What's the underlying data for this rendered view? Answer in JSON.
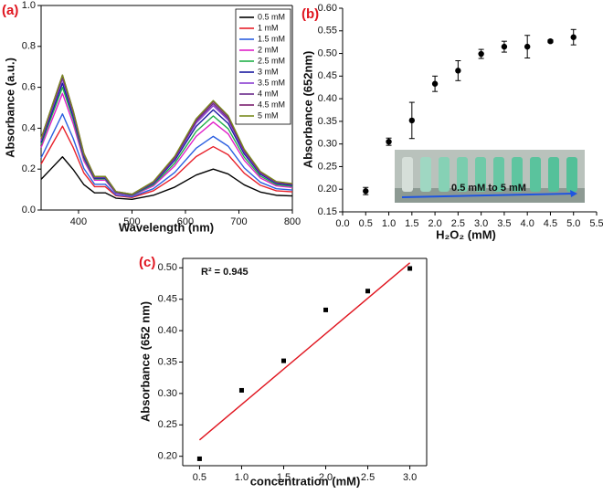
{
  "chart_data": [
    {
      "type": "line",
      "panel_label": "(a)",
      "x_label": "Wavelength (nm)",
      "y_label": "Absorbance (a.u.)",
      "x": [
        330,
        350,
        370,
        390,
        410,
        430,
        450,
        470,
        500,
        540,
        580,
        620,
        652,
        680,
        710,
        740,
        770,
        800
      ],
      "xlim": [
        330,
        800
      ],
      "xticks": [
        400,
        500,
        600,
        700,
        800
      ],
      "ylim": [
        0,
        1.0
      ],
      "yticks": [
        {
          "value": 0,
          "label": "0.0"
        },
        0.2,
        0.4,
        0.6,
        0.8,
        {
          "value": 1.0,
          "label": "1.0"
        }
      ],
      "legend": "upper right",
      "series": [
        {
          "name": "0.5 mM",
          "color": "#000000",
          "values": [
            0.15,
            0.205,
            0.26,
            0.198,
            0.124,
            0.084,
            0.084,
            0.058,
            0.052,
            0.072,
            0.112,
            0.171,
            0.2,
            0.176,
            0.123,
            0.088,
            0.072,
            0.069
          ]
        },
        {
          "name": "1 mM",
          "color": "#e8202a",
          "values": [
            0.225,
            0.318,
            0.41,
            0.306,
            0.181,
            0.114,
            0.114,
            0.07,
            0.061,
            0.094,
            0.162,
            0.261,
            0.31,
            0.27,
            0.18,
            0.121,
            0.094,
            0.089
          ]
        },
        {
          "name": "1.5 mM",
          "color": "#2b5fe0",
          "values": [
            0.255,
            0.363,
            0.47,
            0.35,
            0.203,
            0.126,
            0.126,
            0.074,
            0.065,
            0.104,
            0.184,
            0.302,
            0.36,
            0.312,
            0.206,
            0.136,
            0.104,
            0.098
          ]
        },
        {
          "name": "2 mM",
          "color": "#e020c8",
          "values": [
            0.305,
            0.438,
            0.57,
            0.422,
            0.241,
            0.146,
            0.146,
            0.082,
            0.07,
            0.118,
            0.216,
            0.36,
            0.43,
            0.372,
            0.243,
            0.157,
            0.118,
            0.11
          ]
        },
        {
          "name": "2.5 mM",
          "color": "#22b04a",
          "values": [
            0.32,
            0.46,
            0.6,
            0.443,
            0.253,
            0.152,
            0.152,
            0.085,
            0.072,
            0.124,
            0.229,
            0.384,
            0.46,
            0.397,
            0.258,
            0.166,
            0.124,
            0.116
          ]
        },
        {
          "name": "3 mM",
          "color": "#1a1aa0",
          "values": [
            0.33,
            0.475,
            0.62,
            0.458,
            0.26,
            0.156,
            0.156,
            0.086,
            0.074,
            0.13,
            0.243,
            0.409,
            0.49,
            0.423,
            0.274,
            0.175,
            0.13,
            0.121
          ]
        },
        {
          "name": "3.5 mM",
          "color": "#8b3fd0",
          "values": [
            0.34,
            0.49,
            0.64,
            0.472,
            0.268,
            0.16,
            0.16,
            0.088,
            0.076,
            0.134,
            0.252,
            0.425,
            0.51,
            0.44,
            0.284,
            0.181,
            0.134,
            0.125
          ]
        },
        {
          "name": "4 mM",
          "color": "#6a2a8a",
          "values": [
            0.345,
            0.498,
            0.65,
            0.479,
            0.272,
            0.162,
            0.162,
            0.089,
            0.076,
            0.136,
            0.256,
            0.434,
            0.52,
            0.448,
            0.29,
            0.184,
            0.136,
            0.126
          ]
        },
        {
          "name": "4.5 mM",
          "color": "#7a1e6e",
          "values": [
            0.35,
            0.505,
            0.66,
            0.486,
            0.276,
            0.164,
            0.164,
            0.09,
            0.077,
            0.138,
            0.26,
            0.442,
            0.53,
            0.457,
            0.295,
            0.187,
            0.138,
            0.128
          ]
        },
        {
          "name": "5 mM",
          "color": "#7a8a1e",
          "values": [
            0.35,
            0.505,
            0.66,
            0.486,
            0.276,
            0.164,
            0.164,
            0.09,
            0.077,
            0.139,
            0.263,
            0.446,
            0.535,
            0.461,
            0.297,
            0.189,
            0.139,
            0.129
          ]
        }
      ]
    },
    {
      "type": "errorbar",
      "panel_label": "(b)",
      "x_label": "H₂O₂ (mM)",
      "y_label": "Absorbance (652nm)",
      "inset_label": "0.5 mM to 5 mM",
      "color": "#000000",
      "x": [
        0.5,
        1.0,
        1.5,
        2.0,
        2.5,
        3.0,
        3.5,
        4.0,
        4.5,
        5.0
      ],
      "values": [
        0.196,
        0.305,
        0.352,
        0.433,
        0.462,
        0.499,
        0.515,
        0.515,
        0.527,
        0.536
      ],
      "errors": [
        0.008,
        0.008,
        0.04,
        0.017,
        0.022,
        0.01,
        0.012,
        0.025,
        0.003,
        0.017
      ],
      "xlim": [
        0,
        5.5
      ],
      "xticks": [
        {
          "value": 0,
          "label": "0.0"
        },
        0.5,
        {
          "value": 1,
          "label": "1.0"
        },
        1.5,
        {
          "value": 2,
          "label": "2.0"
        },
        2.5,
        {
          "value": 3,
          "label": "3.0"
        },
        3.5,
        {
          "value": 4,
          "label": "4.0"
        },
        4.5,
        {
          "value": 5,
          "label": "5.0"
        },
        5.5
      ],
      "ylim": [
        0.15,
        0.6
      ],
      "yticks": [
        0.15,
        {
          "value": 0.2,
          "label": "0.20"
        },
        0.25,
        {
          "value": 0.3,
          "label": "0.30"
        },
        0.35,
        {
          "value": 0.4,
          "label": "0.40"
        },
        0.45,
        {
          "value": 0.5,
          "label": "0.50"
        },
        0.55,
        {
          "value": 0.6,
          "label": "0.60"
        }
      ]
    },
    {
      "type": "scatter",
      "panel_label": "(c)",
      "x_label": "concentration (mM)",
      "y_label": "Absorbance (652 nm)",
      "annotation": "R² = 0.945",
      "color": "#000000",
      "x": [
        0.5,
        1.0,
        1.5,
        2.0,
        2.5,
        3.0
      ],
      "values": [
        0.196,
        0.305,
        0.352,
        0.433,
        0.463,
        0.499
      ],
      "fit_line": {
        "color": "#e0141e",
        "x": [
          0.5,
          3.0
        ],
        "values": [
          0.226,
          0.508
        ]
      },
      "xlim": [
        0.3,
        3.2
      ],
      "xticks": [
        0.5,
        {
          "value": 1,
          "label": "1.0"
        },
        1.5,
        {
          "value": 2,
          "label": "2.0"
        },
        2.5,
        {
          "value": 3,
          "label": "3.0"
        }
      ],
      "ylim": [
        0.185,
        0.515
      ],
      "yticks": [
        {
          "value": 0.2,
          "label": "0.20"
        },
        0.25,
        {
          "value": 0.3,
          "label": "0.30"
        },
        0.35,
        {
          "value": 0.4,
          "label": "0.40"
        },
        0.45,
        {
          "value": 0.5,
          "label": "0.50"
        }
      ]
    }
  ]
}
